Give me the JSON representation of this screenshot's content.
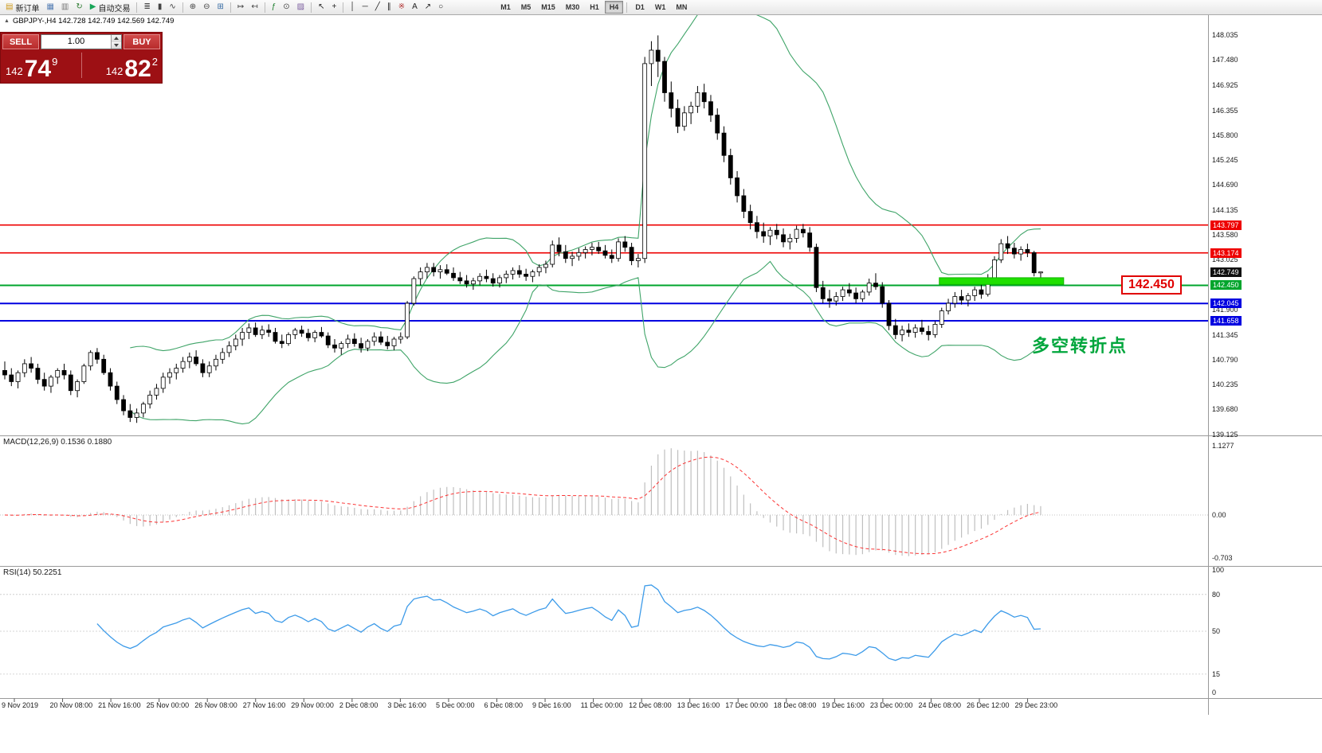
{
  "chart_header": "GBPJPY-,H4 142.728 142.749 142.569 142.749",
  "toolbar": {
    "items": [
      {
        "name": "new-order-button",
        "label": "新订单",
        "glyph": "▤",
        "color": "#cf9a1b"
      },
      {
        "name": "chart-windows-button",
        "glyph": "▦",
        "color": "#567fb5"
      },
      {
        "name": "data-window-button",
        "glyph": "▥",
        "color": "#777777"
      },
      {
        "name": "refresh-button",
        "glyph": "↻",
        "color": "#2e7d32"
      },
      {
        "name": "autotrading-button",
        "label": "自动交易",
        "glyph": "▶",
        "color": "#18a558"
      },
      {
        "sep": true
      },
      {
        "name": "bar-chart-button",
        "glyph": "≣",
        "color": "#444444"
      },
      {
        "name": "candlestick-chart-button",
        "glyph": "▮",
        "color": "#444444"
      },
      {
        "name": "line-chart-button",
        "glyph": "∿",
        "color": "#444444"
      },
      {
        "sep": true
      },
      {
        "name": "zoom-in-button",
        "glyph": "⊕",
        "color": "#444444"
      },
      {
        "name": "zoom-out-button",
        "glyph": "⊖",
        "color": "#444444"
      },
      {
        "name": "tile-windows-button",
        "glyph": "⊞",
        "color": "#3a6ea5"
      },
      {
        "sep": true
      },
      {
        "name": "auto-scroll-button",
        "glyph": "↦",
        "color": "#444444"
      },
      {
        "name": "chart-shift-button",
        "glyph": "↤",
        "color": "#444444"
      },
      {
        "sep": true
      },
      {
        "name": "indicators-button",
        "glyph": "ƒ",
        "color": "#1b7e2c"
      },
      {
        "name": "periods-button",
        "glyph": "⊙",
        "color": "#444444"
      },
      {
        "name": "templates-button",
        "glyph": "▨",
        "color": "#7a5c9e"
      },
      {
        "sep": true
      },
      {
        "name": "cursor-button",
        "glyph": "↖",
        "color": "#222222"
      },
      {
        "name": "crosshair-button",
        "glyph": "+",
        "color": "#222222"
      },
      {
        "sep": true
      },
      {
        "name": "vertical-line-button",
        "glyph": "│",
        "color": "#222222"
      },
      {
        "name": "horizontal-line-button",
        "glyph": "─",
        "color": "#222222"
      },
      {
        "name": "trendline-button",
        "glyph": "╱",
        "color": "#222222"
      },
      {
        "name": "channel-button",
        "glyph": "∥",
        "color": "#222222"
      },
      {
        "name": "fibonacci-button",
        "glyph": "※",
        "color": "#b03030"
      },
      {
        "name": "text-label-button",
        "glyph": "A",
        "color": "#222222"
      },
      {
        "name": "arrows-button",
        "glyph": "↗",
        "color": "#222222"
      },
      {
        "name": "shapes-button",
        "glyph": "○",
        "color": "#222222"
      },
      {
        "spacer": true
      },
      {
        "name": "timeframe-m1-button",
        "label": "M1",
        "tf": true
      },
      {
        "name": "timeframe-m5-button",
        "label": "M5",
        "tf": true
      },
      {
        "name": "timeframe-m15-button",
        "label": "M15",
        "tf": true
      },
      {
        "name": "timeframe-m30-button",
        "label": "M30",
        "tf": true
      },
      {
        "name": "timeframe-h1-button",
        "label": "H1",
        "tf": true
      },
      {
        "name": "timeframe-h4-button",
        "label": "H4",
        "tf": true,
        "active": true
      },
      {
        "sep": true
      },
      {
        "name": "timeframe-d1-button",
        "label": "D1",
        "tf": true
      },
      {
        "name": "timeframe-w1-button",
        "label": "W1",
        "tf": true
      },
      {
        "name": "timeframe-mn-button",
        "label": "MN",
        "tf": true
      }
    ]
  },
  "trade_panel": {
    "sell_label": "SELL",
    "buy_label": "BUY",
    "volume": "1.00",
    "sell_price": {
      "prefix": "142",
      "big": "74",
      "sup": "9"
    },
    "buy_price": {
      "prefix": "142",
      "big": "82",
      "sup": "2"
    }
  },
  "chart_data": {
    "type": "candlestick",
    "symbol": "GBPJPY-",
    "timeframe": "H4",
    "ohlc": [
      [
        140.55,
        140.75,
        140.35,
        140.45
      ],
      [
        140.45,
        140.6,
        140.2,
        140.3
      ],
      [
        140.3,
        140.55,
        140.15,
        140.5
      ],
      [
        140.5,
        140.8,
        140.4,
        140.7
      ],
      [
        140.7,
        140.85,
        140.5,
        140.6
      ],
      [
        140.6,
        140.7,
        140.25,
        140.35
      ],
      [
        140.35,
        140.5,
        140.1,
        140.2
      ],
      [
        140.2,
        140.45,
        140.05,
        140.4
      ],
      [
        140.4,
        140.6,
        140.25,
        140.55
      ],
      [
        140.55,
        140.7,
        140.35,
        140.45
      ],
      [
        140.45,
        140.55,
        140.0,
        140.1
      ],
      [
        140.1,
        140.35,
        139.95,
        140.3
      ],
      [
        140.3,
        140.7,
        140.25,
        140.65
      ],
      [
        140.65,
        141.0,
        140.55,
        140.95
      ],
      [
        140.95,
        141.05,
        140.7,
        140.8
      ],
      [
        140.8,
        140.9,
        140.45,
        140.5
      ],
      [
        140.5,
        140.6,
        140.1,
        140.2
      ],
      [
        140.2,
        140.3,
        139.8,
        139.9
      ],
      [
        139.9,
        140.0,
        139.55,
        139.65
      ],
      [
        139.65,
        139.8,
        139.4,
        139.5
      ],
      [
        139.5,
        139.7,
        139.38,
        139.6
      ],
      [
        139.6,
        139.85,
        139.5,
        139.8
      ],
      [
        139.8,
        140.1,
        139.7,
        140.0
      ],
      [
        140.0,
        140.25,
        139.9,
        140.15
      ],
      [
        140.15,
        140.5,
        140.05,
        140.4
      ],
      [
        140.4,
        140.6,
        140.25,
        140.5
      ],
      [
        140.5,
        140.7,
        140.35,
        140.6
      ],
      [
        140.6,
        140.85,
        140.5,
        140.75
      ],
      [
        140.75,
        140.95,
        140.6,
        140.85
      ],
      [
        140.85,
        141.0,
        140.65,
        140.7
      ],
      [
        140.7,
        140.8,
        140.4,
        140.5
      ],
      [
        140.5,
        140.75,
        140.4,
        140.65
      ],
      [
        140.65,
        140.9,
        140.55,
        140.8
      ],
      [
        140.8,
        141.05,
        140.7,
        140.95
      ],
      [
        140.95,
        141.2,
        140.85,
        141.1
      ],
      [
        141.1,
        141.35,
        141.0,
        141.25
      ],
      [
        141.25,
        141.5,
        141.1,
        141.4
      ],
      [
        141.4,
        141.6,
        141.25,
        141.5
      ],
      [
        141.5,
        141.62,
        141.3,
        141.35
      ],
      [
        141.35,
        141.55,
        141.25,
        141.45
      ],
      [
        141.45,
        141.58,
        141.3,
        141.4
      ],
      [
        141.4,
        141.5,
        141.15,
        141.2
      ],
      [
        141.2,
        141.35,
        141.05,
        141.15
      ],
      [
        141.15,
        141.4,
        141.1,
        141.35
      ],
      [
        141.35,
        141.5,
        141.25,
        141.45
      ],
      [
        141.45,
        141.55,
        141.3,
        141.38
      ],
      [
        141.38,
        141.48,
        141.2,
        141.28
      ],
      [
        141.28,
        141.45,
        141.18,
        141.4
      ],
      [
        141.4,
        141.52,
        141.28,
        141.32
      ],
      [
        141.32,
        141.4,
        141.05,
        141.12
      ],
      [
        141.12,
        141.25,
        140.95,
        141.05
      ],
      [
        141.05,
        141.2,
        140.9,
        141.15
      ],
      [
        141.15,
        141.35,
        141.05,
        141.25
      ],
      [
        141.25,
        141.38,
        141.08,
        141.15
      ],
      [
        141.15,
        141.28,
        140.95,
        141.05
      ],
      [
        141.05,
        141.25,
        140.98,
        141.2
      ],
      [
        141.2,
        141.4,
        141.1,
        141.3
      ],
      [
        141.3,
        141.42,
        141.12,
        141.18
      ],
      [
        141.18,
        141.32,
        141.02,
        141.1
      ],
      [
        141.1,
        141.3,
        141.0,
        141.25
      ],
      [
        141.25,
        141.4,
        141.15,
        141.3
      ],
      [
        141.3,
        142.1,
        141.25,
        142.05
      ],
      [
        142.05,
        142.65,
        142.0,
        142.6
      ],
      [
        142.6,
        142.85,
        142.45,
        142.75
      ],
      [
        142.75,
        142.95,
        142.6,
        142.85
      ],
      [
        142.85,
        142.95,
        142.65,
        142.75
      ],
      [
        142.75,
        142.9,
        142.6,
        142.8
      ],
      [
        142.8,
        142.92,
        142.68,
        142.72
      ],
      [
        142.72,
        142.85,
        142.55,
        142.62
      ],
      [
        142.62,
        142.75,
        142.48,
        142.55
      ],
      [
        142.55,
        142.68,
        142.4,
        142.48
      ],
      [
        142.48,
        142.62,
        142.35,
        142.55
      ],
      [
        142.55,
        142.72,
        142.45,
        142.65
      ],
      [
        142.65,
        142.8,
        142.52,
        142.6
      ],
      [
        142.6,
        142.72,
        142.42,
        142.5
      ],
      [
        142.5,
        142.68,
        142.4,
        142.62
      ],
      [
        142.62,
        142.78,
        142.5,
        142.7
      ],
      [
        142.7,
        142.85,
        142.58,
        142.78
      ],
      [
        142.78,
        142.9,
        142.62,
        142.7
      ],
      [
        142.7,
        142.82,
        142.55,
        142.65
      ],
      [
        142.65,
        142.8,
        142.52,
        142.75
      ],
      [
        142.75,
        142.92,
        142.65,
        142.85
      ],
      [
        142.85,
        143.0,
        142.72,
        142.92
      ],
      [
        142.92,
        143.45,
        142.85,
        143.35
      ],
      [
        143.35,
        143.52,
        143.1,
        143.2
      ],
      [
        143.2,
        143.35,
        142.95,
        143.05
      ],
      [
        143.05,
        143.2,
        142.88,
        143.1
      ],
      [
        143.1,
        143.28,
        143.0,
        143.18
      ],
      [
        143.18,
        143.32,
        143.05,
        143.25
      ],
      [
        143.25,
        143.4,
        143.12,
        143.3
      ],
      [
        143.3,
        143.42,
        143.15,
        143.22
      ],
      [
        143.22,
        143.35,
        143.05,
        143.12
      ],
      [
        143.12,
        143.25,
        142.95,
        143.05
      ],
      [
        143.05,
        143.5,
        142.98,
        143.42
      ],
      [
        143.42,
        143.55,
        143.2,
        143.3
      ],
      [
        143.3,
        143.4,
        142.9,
        143.0
      ],
      [
        143.0,
        143.15,
        142.85,
        143.05
      ],
      [
        143.05,
        147.55,
        142.95,
        147.4
      ],
      [
        147.4,
        147.9,
        146.9,
        147.7
      ],
      [
        147.7,
        148.03,
        147.1,
        147.45
      ],
      [
        147.45,
        147.55,
        146.55,
        146.75
      ],
      [
        146.75,
        147.0,
        146.2,
        146.4
      ],
      [
        146.4,
        146.6,
        145.85,
        146.0
      ],
      [
        146.0,
        146.45,
        145.9,
        146.3
      ],
      [
        146.3,
        146.55,
        146.05,
        146.45
      ],
      [
        146.45,
        146.9,
        146.3,
        146.75
      ],
      [
        146.75,
        146.95,
        146.4,
        146.55
      ],
      [
        146.55,
        146.7,
        146.1,
        146.25
      ],
      [
        146.25,
        146.4,
        145.7,
        145.85
      ],
      [
        145.85,
        146.0,
        145.2,
        145.35
      ],
      [
        145.35,
        145.5,
        144.7,
        144.85
      ],
      [
        144.85,
        145.0,
        144.3,
        144.45
      ],
      [
        144.45,
        144.6,
        143.95,
        144.1
      ],
      [
        144.1,
        144.25,
        143.7,
        143.85
      ],
      [
        143.85,
        144.0,
        143.5,
        143.65
      ],
      [
        143.65,
        143.85,
        143.4,
        143.55
      ],
      [
        143.55,
        143.75,
        143.35,
        143.68
      ],
      [
        143.68,
        143.82,
        143.48,
        143.58
      ],
      [
        143.58,
        143.72,
        143.3,
        143.42
      ],
      [
        143.42,
        143.6,
        143.25,
        143.5
      ],
      [
        143.5,
        143.78,
        143.4,
        143.7
      ],
      [
        143.7,
        143.82,
        143.52,
        143.62
      ],
      [
        143.62,
        143.75,
        143.2,
        143.3
      ],
      [
        143.3,
        143.38,
        142.3,
        142.4
      ],
      [
        142.4,
        142.55,
        142.05,
        142.15
      ],
      [
        142.15,
        142.35,
        141.95,
        142.1
      ],
      [
        142.1,
        142.3,
        142.0,
        142.2
      ],
      [
        142.2,
        142.42,
        142.1,
        142.35
      ],
      [
        142.35,
        142.5,
        142.2,
        142.28
      ],
      [
        142.28,
        142.4,
        142.05,
        142.15
      ],
      [
        142.15,
        142.35,
        142.08,
        142.3
      ],
      [
        142.3,
        142.6,
        142.22,
        142.5
      ],
      [
        142.5,
        142.72,
        142.35,
        142.42
      ],
      [
        142.42,
        142.52,
        141.95,
        142.05
      ],
      [
        142.05,
        142.12,
        141.45,
        141.55
      ],
      [
        141.55,
        141.7,
        141.25,
        141.35
      ],
      [
        141.35,
        141.55,
        141.2,
        141.45
      ],
      [
        141.45,
        141.6,
        141.3,
        141.4
      ],
      [
        141.4,
        141.58,
        141.28,
        141.5
      ],
      [
        141.5,
        141.68,
        141.35,
        141.42
      ],
      [
        141.42,
        141.55,
        141.22,
        141.35
      ],
      [
        141.35,
        141.65,
        141.28,
        141.58
      ],
      [
        141.58,
        141.95,
        141.5,
        141.88
      ],
      [
        141.88,
        142.15,
        141.8,
        142.05
      ],
      [
        142.05,
        142.3,
        141.95,
        142.2
      ],
      [
        142.2,
        142.35,
        142.02,
        142.12
      ],
      [
        142.12,
        142.28,
        141.98,
        142.22
      ],
      [
        142.22,
        142.42,
        142.1,
        142.35
      ],
      [
        142.35,
        142.48,
        142.15,
        142.25
      ],
      [
        142.25,
        142.7,
        142.2,
        142.62
      ],
      [
        142.62,
        143.1,
        142.55,
        143.02
      ],
      [
        143.02,
        143.48,
        142.95,
        143.38
      ],
      [
        143.38,
        143.55,
        143.15,
        143.28
      ],
      [
        143.28,
        143.4,
        143.05,
        143.15
      ],
      [
        143.15,
        143.32,
        143.0,
        143.25
      ],
      [
        143.25,
        143.38,
        143.08,
        143.18
      ],
      [
        143.18,
        143.22,
        142.65,
        142.73
      ],
      [
        142.728,
        142.749,
        142.569,
        142.749
      ]
    ],
    "indicators": {
      "bollinger": {
        "period": 20,
        "deviation": 2,
        "color": "#3fa468"
      },
      "macd": {
        "label": "MACD(12,26,9) 0.1536 0.1880",
        "fast": 12,
        "slow": 26,
        "signal": 9,
        "hist_color": "#bfbfbf",
        "signal_color": "#fb3434",
        "axis_labels": [
          "1.1277",
          "0.00",
          "-0.703"
        ]
      },
      "rsi": {
        "label": "RSI(14) 50.2251",
        "period": 14,
        "color": "#3d9be9",
        "levels": [
          80,
          50,
          15
        ],
        "axis_labels": [
          "100",
          "80",
          "50",
          "15",
          "0"
        ]
      }
    },
    "levels": [
      {
        "price": 143.797,
        "label": "143.797",
        "color": "#ee0000",
        "width": 1.6
      },
      {
        "price": 143.174,
        "label": "143.174",
        "color": "#ee0000",
        "width": 1.6
      },
      {
        "price": 142.45,
        "label": "142.450",
        "color": "#00a52c",
        "width": 2
      },
      {
        "price": 142.045,
        "label": "142.045",
        "color": "#0000e0",
        "width": 2
      },
      {
        "price": 141.658,
        "label": "141.658",
        "color": "#0000e0",
        "width": 2
      }
    ],
    "current_price": {
      "value": 142.749,
      "label": "142.749"
    },
    "y_axis_labels": [
      "148.035",
      "147.480",
      "146.925",
      "146.355",
      "145.800",
      "145.245",
      "144.690",
      "144.135",
      "143.580",
      "143.025",
      "141.900",
      "141.345",
      "140.790",
      "140.235",
      "139.680",
      "139.125"
    ],
    "x_axis_labels": [
      "9 Nov 2019",
      "20 Nov 08:00",
      "21 Nov 16:00",
      "25 Nov 00:00",
      "26 Nov 08:00",
      "27 Nov 16:00",
      "29 Nov 00:00",
      "2 Dec 08:00",
      "3 Dec 16:00",
      "5 Dec 00:00",
      "6 Dec 08:00",
      "9 Dec 16:00",
      "11 Dec 00:00",
      "12 Dec 08:00",
      "13 Dec 16:00",
      "17 Dec 00:00",
      "18 Dec 08:00",
      "19 Dec 16:00",
      "23 Dec 00:00",
      "24 Dec 08:00",
      "26 Dec 12:00",
      "29 Dec 23:00"
    ],
    "highlight": {
      "bar_start": 142,
      "bar_end": 160,
      "price_top": 142.62,
      "price_bottom": 142.47,
      "color": "#1fe000",
      "border_color": "#12b500"
    },
    "annotation": {
      "text": "多空转折点",
      "color": "#00a63c"
    },
    "price_callout": {
      "text": "142.450"
    }
  }
}
